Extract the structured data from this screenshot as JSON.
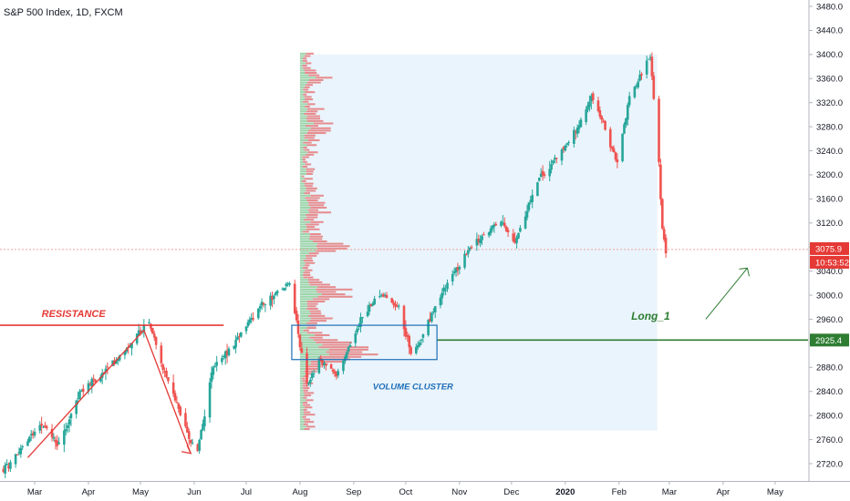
{
  "chart_data": {
    "type": "candlestick",
    "title": "S&P 500 Index, 1D, FXCM",
    "xlabel": "",
    "ylabel": "",
    "ylim": [
      2690,
      3505
    ],
    "y_ticks": [
      2720,
      2760,
      2800,
      2840,
      2880,
      2920,
      2960,
      3000,
      3040,
      3080,
      3120,
      3160,
      3200,
      3240,
      3280,
      3320,
      3360,
      3400,
      3440,
      3480
    ],
    "x_ticks": [
      {
        "label": "Mar",
        "date": "2019-03-01"
      },
      {
        "label": "Apr",
        "date": "2019-04-01"
      },
      {
        "label": "May",
        "date": "2019-05-01"
      },
      {
        "label": "Jun",
        "date": "2019-06-01"
      },
      {
        "label": "Jul",
        "date": "2019-07-01"
      },
      {
        "label": "Aug",
        "date": "2019-08-01"
      },
      {
        "label": "Sep",
        "date": "2019-09-01"
      },
      {
        "label": "Oct",
        "date": "2019-10-01"
      },
      {
        "label": "Nov",
        "date": "2019-11-01"
      },
      {
        "label": "Dec",
        "date": "2019-12-01"
      },
      {
        "label": "2020",
        "date": "2020-01-01"
      },
      {
        "label": "Feb",
        "date": "2020-02-01"
      },
      {
        "label": "Mar",
        "date": "2020-03-01"
      },
      {
        "label": "Apr",
        "date": "2020-04-01"
      },
      {
        "label": "May",
        "date": "2020-05-01"
      }
    ],
    "x_range": [
      "2019-02-09",
      "2020-05-20"
    ],
    "price_path": [
      {
        "date": "2019-02-11",
        "close": 2710
      },
      {
        "date": "2019-02-22",
        "close": 2745
      },
      {
        "date": "2019-03-05",
        "close": 2790
      },
      {
        "date": "2019-03-15",
        "close": 2750
      },
      {
        "date": "2019-03-27",
        "close": 2840
      },
      {
        "date": "2019-04-10",
        "close": 2870
      },
      {
        "date": "2019-04-25",
        "close": 2920
      },
      {
        "date": "2019-05-03",
        "close": 2950
      },
      {
        "date": "2019-05-07",
        "close": 2950
      },
      {
        "date": "2019-05-14",
        "close": 2880
      },
      {
        "date": "2019-05-22",
        "close": 2820
      },
      {
        "date": "2019-05-29",
        "close": 2760
      },
      {
        "date": "2019-06-03",
        "close": 2745
      },
      {
        "date": "2019-06-12",
        "close": 2880
      },
      {
        "date": "2019-06-24",
        "close": 2920
      },
      {
        "date": "2019-07-10",
        "close": 2985
      },
      {
        "date": "2019-07-26",
        "close": 3020
      },
      {
        "date": "2019-08-05",
        "close": 2850
      },
      {
        "date": "2019-08-12",
        "close": 2890
      },
      {
        "date": "2019-08-23",
        "close": 2870
      },
      {
        "date": "2019-09-05",
        "close": 2960
      },
      {
        "date": "2019-09-16",
        "close": 3005
      },
      {
        "date": "2019-09-27",
        "close": 2980
      },
      {
        "date": "2019-10-04",
        "close": 2905
      },
      {
        "date": "2019-10-10",
        "close": 2930
      },
      {
        "date": "2019-10-20",
        "close": 2995
      },
      {
        "date": "2019-11-05",
        "close": 3070
      },
      {
        "date": "2019-11-25",
        "close": 3125
      },
      {
        "date": "2019-12-03",
        "close": 3090
      },
      {
        "date": "2019-12-16",
        "close": 3190
      },
      {
        "date": "2020-01-02",
        "close": 3250
      },
      {
        "date": "2020-01-17",
        "close": 3330
      },
      {
        "date": "2020-01-27",
        "close": 3250
      },
      {
        "date": "2020-01-31",
        "close": 3220
      },
      {
        "date": "2020-02-07",
        "close": 3330
      },
      {
        "date": "2020-02-19",
        "close": 3395
      },
      {
        "date": "2020-02-24",
        "close": 3220
      },
      {
        "date": "2020-02-26",
        "close": 3110
      },
      {
        "date": "2020-02-28",
        "close": 3070
      }
    ],
    "volume_profile": {
      "start_date": "2019-08-01",
      "end_date": "2020-02-23",
      "price_range": [
        2775,
        3400
      ],
      "poc_price": 2905
    },
    "price_labels": [
      {
        "value": 3075.9,
        "text": "3075.9",
        "color": "#e53935"
      },
      {
        "value": 3075.9,
        "text": "10:53:52",
        "color": "#e53935"
      },
      {
        "value": 2925.4,
        "text": "2925.4",
        "color": "#2e7d32"
      }
    ],
    "horizontal_lines": [
      {
        "name": "resistance",
        "price": 2950,
        "start_date": "2019-02-09",
        "end_date": "2019-06-18",
        "color": "#e53935"
      },
      {
        "name": "long",
        "price": 2925.4,
        "start_date": "2019-10-19",
        "end_date": "2020-05-20",
        "color": "#2e7d32"
      },
      {
        "name": "last-price",
        "price": 3075.9,
        "start_date": "2019-02-09",
        "end_date": "2020-05-20",
        "color": "#f2a4a4"
      }
    ],
    "annotations": [
      {
        "text": "RESISTANCE",
        "color": "#e53935"
      },
      {
        "text": "VOLUME CLUSTER",
        "color": "#1e6fb8"
      },
      {
        "text": "Long_1",
        "color": "#2e7d32"
      }
    ],
    "colors": {
      "up": "#26a69a",
      "down": "#ef5350",
      "profile_buy": "#8fcf9a",
      "profile_sell": "#e57373",
      "profile_bg": "#e3f0fb",
      "box": "#1e6fb8"
    }
  }
}
